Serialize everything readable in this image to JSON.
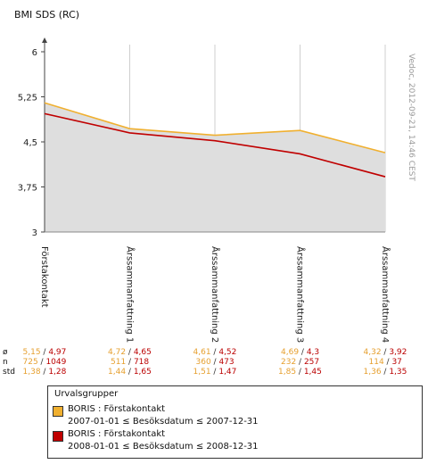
{
  "chart_data": {
    "type": "line",
    "title": "BMI SDS (RC)",
    "categories": [
      "Förstakontakt",
      "Årssammanfattning 1",
      "Årssammanfattning 2",
      "Årssammanfattning 3",
      "Årssammanfattning 4"
    ],
    "y_ticks": [
      "6",
      "5,25",
      "4,5",
      "3,75",
      "3"
    ],
    "ylim": [
      3,
      6
    ],
    "grid": "vertical",
    "series": [
      {
        "name": "BORIS : Förstakontakt 2007-01-01 ≤ Besöksdatum ≤ 2007-12-31",
        "color": "#f0b030",
        "values": [
          5.15,
          4.72,
          4.61,
          4.69,
          4.32
        ],
        "mean_labels": [
          "5,15",
          "4,72",
          "4,61",
          "4,69",
          "4,32"
        ],
        "n_labels": [
          "725",
          "511",
          "360",
          "232",
          "114"
        ],
        "std_labels": [
          "1,38",
          "1,44",
          "1,51",
          "1,85",
          "1,36"
        ]
      },
      {
        "name": "BORIS : Förstakontakt 2008-01-01 ≤ Besöksdatum ≤ 2008-12-31",
        "color": "#c00000",
        "values": [
          4.97,
          4.65,
          4.52,
          4.3,
          3.92
        ],
        "mean_labels": [
          "4,97",
          "4,65",
          "4,52",
          "4,3",
          "3,92"
        ],
        "n_labels": [
          "1049",
          "718",
          "473",
          "257",
          "37"
        ],
        "std_labels": [
          "1,28",
          "1,65",
          "1,47",
          "1,45",
          "1,35"
        ]
      }
    ]
  },
  "stats_labels": {
    "mean": "ø",
    "n": "n",
    "std": "std"
  },
  "legend": {
    "title": "Urvalsgrupper",
    "items": [
      {
        "line1": "BORIS : Förstakontakt",
        "line2": "2007-01-01 ≤ Besöksdatum ≤ 2007-12-31",
        "color": "#f0b030"
      },
      {
        "line1": "BORIS : Förstakontakt",
        "line2": "2008-01-01 ≤ Besöksdatum ≤ 2008-12-31",
        "color": "#c00000"
      }
    ]
  },
  "watermark": "Vedoc, 2012-09-21, 14:46 CEST"
}
